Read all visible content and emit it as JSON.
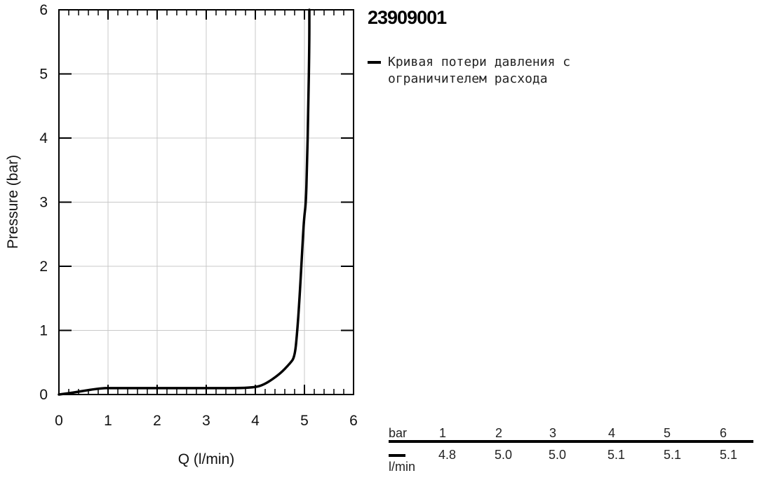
{
  "product": {
    "id": "23909001"
  },
  "legend": {
    "label": "Кривая потери давления с ограничителем расхода"
  },
  "table": {
    "row1_label": "bar",
    "row2_label": "l/min",
    "bar_values": [
      "1",
      "2",
      "3",
      "4",
      "5",
      "6"
    ],
    "flow_values": [
      "4.8",
      "5.0",
      "5.0",
      "5.1",
      "5.1",
      "5.1"
    ]
  },
  "chart_data": {
    "type": "line",
    "xlabel": "Q (l/min)",
    "ylabel": "Pressure (bar)",
    "xlim": [
      0,
      6
    ],
    "ylim": [
      0,
      6
    ],
    "xticks": [
      "0",
      "1",
      "2",
      "3",
      "4",
      "5",
      "6"
    ],
    "yticks": [
      "0",
      "1",
      "2",
      "3",
      "4",
      "5",
      "6"
    ],
    "grid": true,
    "series": [
      {
        "name": "Кривая потери давления с ограничителем расхода",
        "color": "#000000",
        "x": [
          0,
          0.3,
          0.6,
          0.9,
          1.0,
          2.0,
          3.0,
          3.95,
          4.2,
          4.5,
          4.7,
          4.8,
          4.85,
          4.9,
          4.95,
          4.98,
          5.0,
          5.03,
          5.05,
          5.08,
          5.1,
          5.1
        ],
        "y": [
          0,
          0.03,
          0.07,
          0.1,
          0.1,
          0.1,
          0.1,
          0.1,
          0.16,
          0.32,
          0.48,
          0.58,
          0.95,
          1.5,
          2.2,
          2.6,
          2.8,
          3.0,
          3.5,
          4.5,
          5.5,
          6.0
        ]
      }
    ]
  }
}
